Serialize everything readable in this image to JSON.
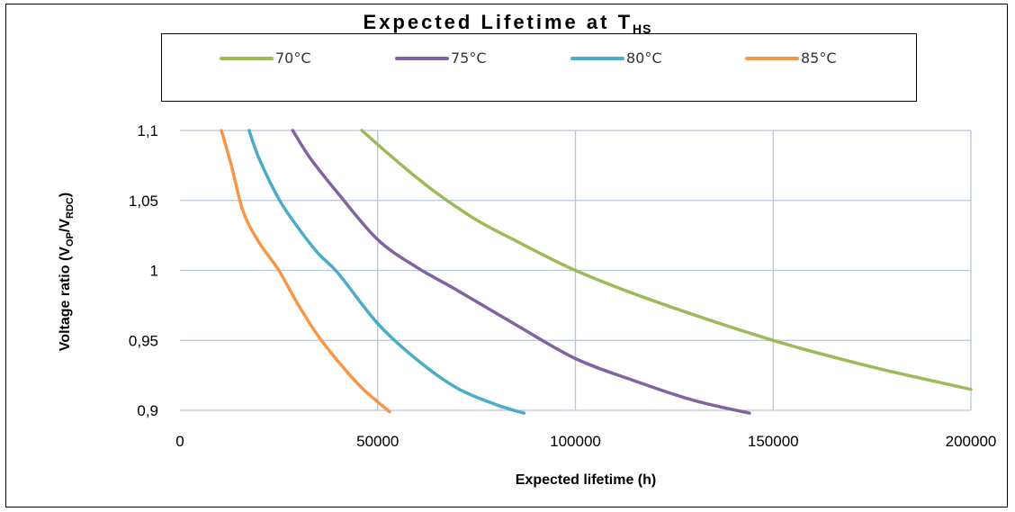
{
  "chart_data": {
    "type": "line",
    "title": "Expected Lifetime at T",
    "title_subscript": "HS",
    "xlabel": "Expected lifetime (h)",
    "ylabel_parts": [
      "Voltage ratio (V",
      "OP",
      "/V",
      "RDC",
      ")"
    ],
    "xlim": [
      0,
      200000
    ],
    "ylim": [
      0.9,
      1.1
    ],
    "x_ticks": [
      0,
      50000,
      100000,
      150000,
      200000
    ],
    "x_tick_labels": [
      "0",
      "50000",
      "100000",
      "150000",
      "200000"
    ],
    "y_ticks": [
      0.9,
      0.95,
      1.0,
      1.05,
      1.1
    ],
    "y_tick_labels": [
      "0,9",
      "0,95",
      "1",
      "1,05",
      "1,1"
    ],
    "grid": true,
    "legend_position": "top",
    "series": [
      {
        "name": "70°C",
        "color": "#9bbb59",
        "points": [
          [
            46000,
            1.1
          ],
          [
            52000,
            1.085
          ],
          [
            60000,
            1.066
          ],
          [
            66000,
            1.053
          ],
          [
            75000,
            1.036
          ],
          [
            85000,
            1.021
          ],
          [
            100000,
            1.0
          ],
          [
            120000,
            0.978
          ],
          [
            150000,
            0.95
          ],
          [
            175000,
            0.931
          ],
          [
            200000,
            0.915
          ]
        ]
      },
      {
        "name": "75°C",
        "color": "#8064a2",
        "points": [
          [
            28500,
            1.1
          ],
          [
            33000,
            1.08
          ],
          [
            40000,
            1.055
          ],
          [
            50000,
            1.022
          ],
          [
            60000,
            1.002
          ],
          [
            70000,
            0.986
          ],
          [
            85000,
            0.961
          ],
          [
            100000,
            0.937
          ],
          [
            115000,
            0.921
          ],
          [
            130000,
            0.907
          ],
          [
            144000,
            0.898
          ]
        ]
      },
      {
        "name": "80°C",
        "color": "#4bacc6",
        "points": [
          [
            17500,
            1.1
          ],
          [
            20000,
            1.08
          ],
          [
            25000,
            1.051
          ],
          [
            30000,
            1.03
          ],
          [
            35000,
            1.012
          ],
          [
            40000,
            0.998
          ],
          [
            50000,
            0.962
          ],
          [
            60000,
            0.936
          ],
          [
            70000,
            0.916
          ],
          [
            80000,
            0.904
          ],
          [
            87000,
            0.898
          ]
        ]
      },
      {
        "name": "85°C",
        "color": "#f79646",
        "points": [
          [
            10500,
            1.1
          ],
          [
            13000,
            1.075
          ],
          [
            16000,
            1.042
          ],
          [
            20000,
            1.02
          ],
          [
            25000,
            1.0
          ],
          [
            30000,
            0.975
          ],
          [
            35000,
            0.953
          ],
          [
            40000,
            0.935
          ],
          [
            46000,
            0.916
          ],
          [
            53000,
            0.899
          ]
        ]
      }
    ]
  }
}
